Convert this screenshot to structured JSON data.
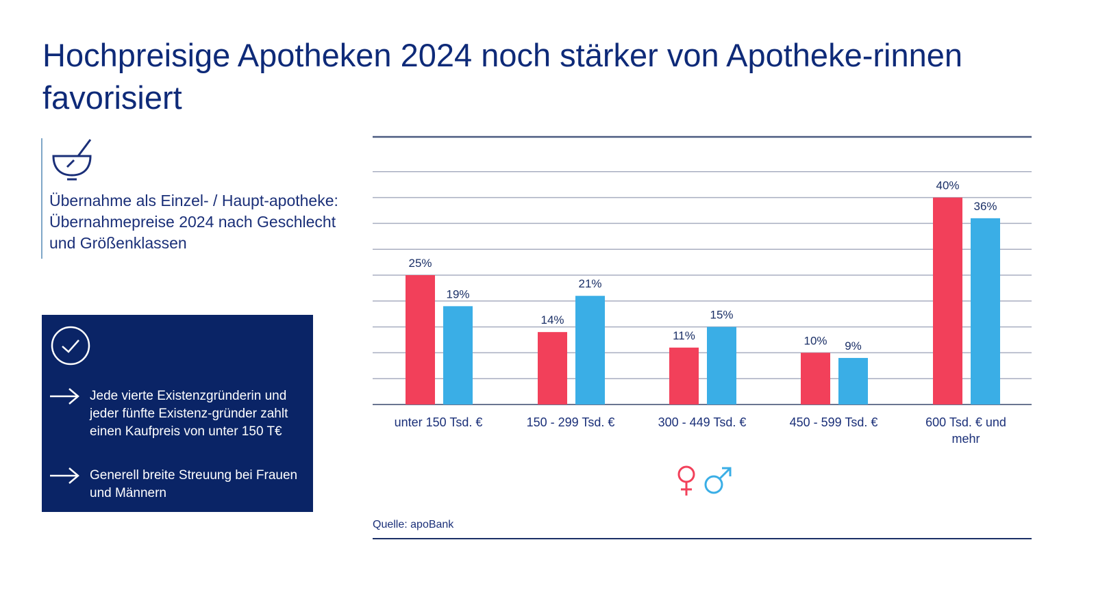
{
  "title": "Hochpreisige Apotheken 2024 noch stärker von Apotheke-rinnen favorisiert",
  "info": {
    "icon": "mortar-pestle-icon",
    "text": "Übernahme als Einzel- / Haupt-apotheke: Übernahmepreise 2024 nach Geschlecht und Größenklassen"
  },
  "box": {
    "icon": "check-circle-icon",
    "bullets": [
      "Jede vierte Existenzgründerin und jeder fünfte Existenz-gründer zahlt einen Kaufpreis von unter 150 T€",
      "Generell breite Streuung bei Frauen und Männern"
    ]
  },
  "source": "Quelle: apoBank",
  "colors": {
    "female": "#f2405a",
    "male": "#3aaee6",
    "navy": "#0a2466"
  },
  "chart_data": {
    "type": "bar",
    "categories": [
      "unter 150 Tsd. €",
      "150 - 299 Tsd. €",
      "300 - 449 Tsd. €",
      "450 - 599 Tsd. €",
      "600 Tsd. € und mehr"
    ],
    "series": [
      {
        "legend_icon": "female-symbol-icon",
        "color": "#f2405a",
        "values": [
          25,
          14,
          11,
          10,
          40
        ],
        "labels": [
          "25%",
          "14%",
          "11%",
          "10%",
          "40%"
        ]
      },
      {
        "legend_icon": "male-symbol-icon",
        "color": "#3aaee6",
        "values": [
          19,
          21,
          15,
          9,
          36
        ],
        "labels": [
          "19%",
          "21%",
          "15%",
          "9%",
          "36%"
        ]
      }
    ],
    "ylim": [
      0,
      50
    ],
    "unit": "%",
    "grid": true,
    "legend_placement": "bottom-center"
  }
}
